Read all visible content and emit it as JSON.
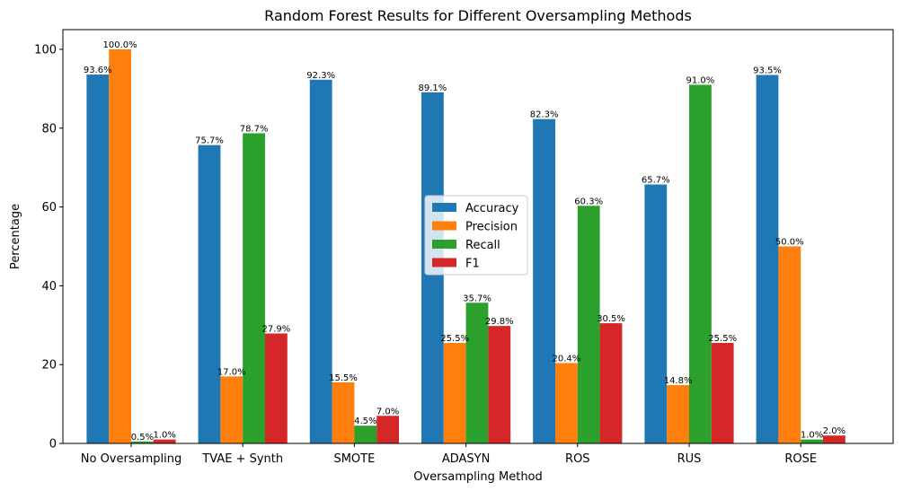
{
  "chart_data": {
    "type": "bar",
    "title": "Random Forest Results for Different Oversampling Methods",
    "xlabel": "Oversampling Method",
    "ylabel": "Percentage",
    "ylim": [
      0,
      105
    ],
    "yticks": [
      0,
      20,
      40,
      60,
      80,
      100
    ],
    "categories": [
      "No Oversampling",
      "TVAE + Synth",
      "SMOTE",
      "ADASYN",
      "ROS",
      "RUS",
      "ROSE"
    ],
    "series": [
      {
        "name": "Accuracy",
        "color": "#1f77b4",
        "values": [
          93.6,
          75.7,
          92.3,
          89.1,
          82.3,
          65.7,
          93.5
        ],
        "labels": [
          "93.6%",
          "75.7%",
          "92.3%",
          "89.1%",
          "82.3%",
          "65.7%",
          "93.5%"
        ]
      },
      {
        "name": "Precision",
        "color": "#ff7f0e",
        "values": [
          100.0,
          17.0,
          15.5,
          25.5,
          20.4,
          14.8,
          50.0
        ],
        "labels": [
          "100.0%",
          "17.0%",
          "15.5%",
          "25.5%",
          "20.4%",
          "14.8%",
          "50.0%"
        ]
      },
      {
        "name": "Recall",
        "color": "#2ca02c",
        "values": [
          0.5,
          78.7,
          4.5,
          35.7,
          60.3,
          91.0,
          1.0
        ],
        "labels": [
          "0.5%",
          "78.7%",
          "4.5%",
          "35.7%",
          "60.3%",
          "91.0%",
          "1.0%"
        ]
      },
      {
        "name": "F1",
        "color": "#d62728",
        "values": [
          1.0,
          27.9,
          7.0,
          29.8,
          30.5,
          25.5,
          2.0
        ],
        "labels": [
          "1.0%",
          "27.9%",
          "7.0%",
          "29.8%",
          "30.5%",
          "25.5%",
          "2.0%"
        ]
      }
    ],
    "legend_position": "center"
  }
}
